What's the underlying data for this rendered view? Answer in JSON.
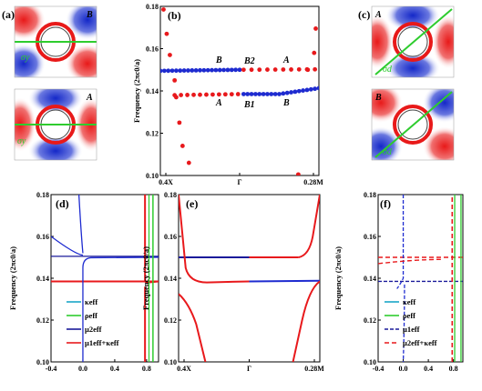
{
  "panels": {
    "a": {
      "label": "(a)",
      "top_mode": "B",
      "bottom_mode": "A",
      "sym": "σy"
    },
    "b": {
      "label": "(b)",
      "ylabel": "Frequency (2πc0/a)",
      "xticks": [
        "0.4X",
        "Γ",
        "0.28M"
      ],
      "yticks": [
        "0.10",
        "0.12",
        "0.14",
        "0.16",
        "0.18"
      ],
      "annotations": {
        "B_left": "B",
        "B2": "B2",
        "A_right": "A",
        "A_left": "A",
        "B1": "B1",
        "B_right": "B"
      }
    },
    "c": {
      "label": "(c)",
      "top_mode": "A",
      "bottom_mode": "B",
      "sym": "σd"
    },
    "d": {
      "label": "(d)",
      "ylabel": "Frequency (2πc0/a)",
      "xticks": [
        "-0.4",
        "0.0",
        "0.4",
        "0.8"
      ],
      "yticks": [
        "0.10",
        "0.12",
        "0.14",
        "0.16",
        "0.18"
      ],
      "legend": [
        "κeff",
        "ρeff",
        "μ2eff",
        "μ1eff+κeff"
      ]
    },
    "e": {
      "label": "(e)",
      "ylabel": "Frequency (2πc0/a)",
      "xticks": [
        "0.4X",
        "Γ",
        "0.28M"
      ],
      "yticks": [
        "0.10",
        "0.12",
        "0.14",
        "0.16",
        "0.18"
      ]
    },
    "f": {
      "label": "(f)",
      "ylabel": "Frequency (2πc0/a)",
      "xticks": [
        "-0.4",
        "0.0",
        "0.4",
        "0.8"
      ],
      "yticks": [
        "0.10",
        "0.12",
        "0.14",
        "0.16",
        "0.18"
      ],
      "legend": [
        "κeff",
        "ρeff",
        "μ1eff",
        "μ2eff+κeff"
      ]
    }
  },
  "colors": {
    "red": "#e8191c",
    "blue": "#1e2bd0",
    "green": "#2ecc2e",
    "cyan": "#1aa6c8",
    "darkblue": "#1a1a9a"
  },
  "chart_data": [
    {
      "type": "scatter",
      "xlabel": "",
      "ylabel": "Frequency (2πc0/a)",
      "ylim": [
        0.1,
        0.18
      ],
      "series": [
        {
          "values": [
            [
              -1.0,
              0.1495
            ],
            [
              -0.8,
              0.1495
            ],
            [
              -0.6,
              0.1495
            ],
            [
              -0.4,
              0.1498
            ],
            [
              -0.2,
              0.1499
            ],
            [
              0.0,
              0.15
            ],
            [
              0.2,
              0.1495
            ],
            [
              0.4,
              0.1483
            ],
            [
              0.6,
              0.1462
            ],
            [
              0.8,
              0.1438
            ],
            [
              1.0,
              0.1413
            ]
          ]
        },
        {
          "values": [
            [
              -1.0,
              0.138
            ],
            [
              -0.8,
              0.137
            ],
            [
              -0.6,
              0.138
            ],
            [
              -0.4,
              0.1385
            ],
            [
              -0.2,
              0.1385
            ],
            [
              0.0,
              0.15
            ],
            [
              0.2,
              0.1502
            ],
            [
              0.4,
              0.1502
            ],
            [
              0.6,
              0.1492
            ],
            [
              0.8,
              0.1482
            ],
            [
              1.0,
              0.1468
            ],
            [
              -0.95,
              0.1785
            ],
            [
              -0.9,
              0.167
            ],
            [
              -0.85,
              0.145
            ],
            [
              -0.75,
              0.125
            ],
            [
              -0.6,
              0.106
            ],
            [
              0.7,
              0.1005
            ],
            [
              0.9,
              0.158
            ],
            [
              0.95,
              0.1695
            ]
          ]
        }
      ]
    },
    {
      "type": "line",
      "xlabel": "",
      "ylabel": "Frequency (2πc0/a)",
      "ylim": [
        0.1,
        0.18
      ],
      "xlim": [
        -0.4,
        0.95
      ],
      "series": [
        {
          "values": [
            [
              0.0,
              0.1495
            ],
            [
              0.0,
              0.1505
            ],
            [
              -0.4,
              0.1505
            ]
          ]
        },
        {
          "values": [
            [
              0.8,
              0.1
            ],
            [
              0.8,
              0.18
            ]
          ]
        },
        {
          "values": [
            [
              -0.4,
              0.1505
            ],
            [
              0.95,
              0.1505
            ],
            [
              -0.4,
              0.1385
            ],
            [
              0.95,
              0.1385
            ]
          ]
        },
        {
          "values": [
            [
              -0.4,
              0.1385
            ],
            [
              0.95,
              0.1385
            ]
          ]
        }
      ]
    },
    {
      "type": "line",
      "xlabel": "",
      "ylabel": "Frequency (2πc0/a)",
      "ylim": [
        0.1,
        0.18
      ],
      "series": [
        {
          "values": [
            [
              -1.0,
              0.15
            ],
            [
              1.0,
              0.15
            ],
            [
              -1.0,
              0.1385
            ],
            [
              1.0,
              0.1385
            ]
          ]
        },
        {
          "values": [
            [
              -1.0,
              0.18
            ],
            [
              -0.8,
              0.14
            ],
            [
              -0.3,
              0.138
            ],
            [
              0.3,
              0.138
            ],
            [
              0.8,
              0.14
            ],
            [
              1.0,
              0.18
            ]
          ]
        }
      ]
    },
    {
      "type": "line",
      "xlabel": "",
      "ylabel": "Frequency (2πc0/a)",
      "ylim": [
        0.1,
        0.18
      ],
      "xlim": [
        -0.4,
        0.95
      ],
      "series": [
        {
          "values": [
            [
              -0.4,
              0.1385
            ],
            [
              0.95,
              0.1385
            ]
          ]
        },
        {
          "values": [
            [
              0.8,
              0.1
            ],
            [
              0.8,
              0.18
            ],
            [
              0.85,
              0.1
            ],
            [
              0.85,
              0.18
            ]
          ]
        },
        {
          "values": [
            [
              0.0,
              0.1
            ],
            [
              0.0,
              0.18
            ]
          ]
        },
        {
          "values": [
            [
              -0.4,
              0.15
            ],
            [
              0.95,
              0.15
            ]
          ]
        }
      ]
    }
  ]
}
